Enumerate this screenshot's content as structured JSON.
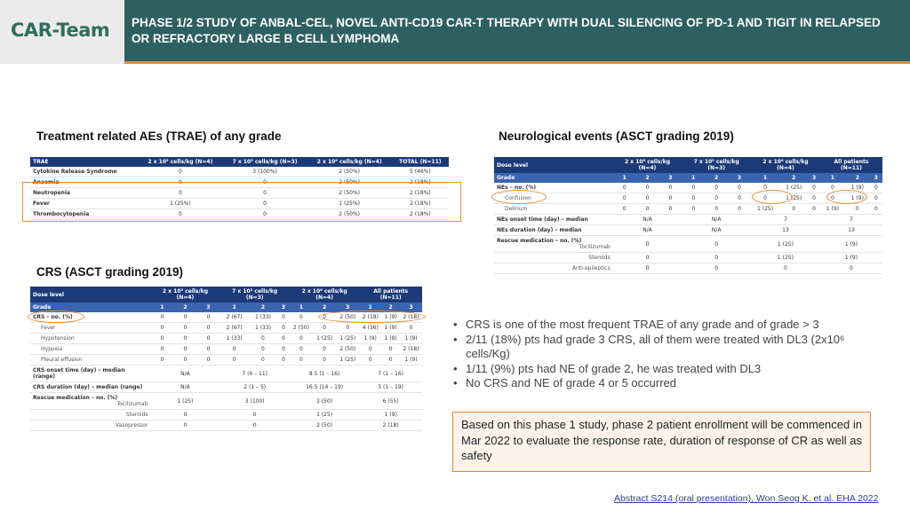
{
  "header": {
    "logo": "CAR-Team",
    "title": "PHASE 1/2 STUDY OF ANBAL-CEL, NOVEL ANTI-CD19 CAR-T THERAPY WITH DUAL SILENCING OF PD-1 AND TIGIT IN RELAPSED OR REFRACTORY LARGE B CELL LYMPHOMA"
  },
  "trae": {
    "title": "Treatment related AEs (TRAE) of any grade",
    "headers": [
      "TRAE",
      "2 x 10⁵ cells/kg (N=4)",
      "7 x 10⁵ cells/kg (N=3)",
      "2 x 10⁶ cells/kg (N=4)",
      "TOTAL (N=11)"
    ],
    "rows": [
      [
        "Cytokine Release Syndrome",
        "0",
        "3 (100%)",
        "2 (50%)",
        "5 (46%)"
      ],
      [
        "Anaemia",
        "0",
        "0",
        "2 (50%)",
        "2 (18%)"
      ],
      [
        "Neutropenia",
        "0",
        "0",
        "2 (50%)",
        "2 (18%)"
      ],
      [
        "Fever",
        "1 (25%)",
        "0",
        "1 (25%)",
        "2 (18%)"
      ],
      [
        "Thrombocytopenia",
        "0",
        "0",
        "2 (50%)",
        "2 (18%)"
      ]
    ]
  },
  "crs": {
    "title": "CRS (ASCT grading 2019)",
    "headers": [
      "Dose level",
      "2 x 10⁵ cells/kg (N=4)",
      "7 x 10⁵ cells/kg (N=3)",
      "2 x 10⁶ cells/kg (N=4)",
      "All patients (N=11)"
    ],
    "grade_label": "Grade",
    "grades": [
      "1",
      "2",
      "3",
      "1",
      "2",
      "3",
      "1",
      "2",
      "3",
      "1",
      "2",
      "3"
    ],
    "rows": [
      [
        "CRS – no. (%)",
        "0",
        "0",
        "0",
        "2 (67)",
        "1 (33)",
        "0",
        "0",
        "0",
        "2 (50)",
        "2 (18)",
        "1 (9)",
        "2 (18)"
      ],
      [
        "Fever",
        "0",
        "0",
        "0",
        "2 (67)",
        "1 (33)",
        "0",
        "2 (50)",
        "0",
        "0",
        "4 (36)",
        "1 (9)",
        "0"
      ],
      [
        "Hypotension",
        "0",
        "0",
        "0",
        "1 (33)",
        "0",
        "0",
        "0",
        "1 (25)",
        "1 (25)",
        "1 (9)",
        "1 (9)",
        "1 (9)"
      ],
      [
        "Hypoxia",
        "0",
        "0",
        "0",
        "0",
        "0",
        "0",
        "0",
        "0",
        "2 (50)",
        "0",
        "0",
        "2 (18)"
      ],
      [
        "Pleural effusion",
        "0",
        "0",
        "0",
        "0",
        "0",
        "0",
        "0",
        "0",
        "1 (25)",
        "0",
        "0",
        "1 (9)"
      ]
    ],
    "onset_label": "CRS onset time (day) – median (range)",
    "onset": [
      "N/A",
      "7 (6 – 11)",
      "8.5 (1 – 16)",
      "7 (1 – 16)"
    ],
    "duration_label": "CRS duration (day) – median (range)",
    "duration": [
      "N/A",
      "2 (1 – 5)",
      "16.5 (14 – 19)",
      "5 (1 – 19)"
    ],
    "rescue_label": "Rescue medication – no. (%)",
    "rescue": [
      [
        "Tocilizumab",
        "1 (25)",
        "3 (100)",
        "2 (50)",
        "6 (55)"
      ],
      [
        "Steroids",
        "0",
        "0",
        "1 (25)",
        "1 (9)"
      ],
      [
        "Vasopressor",
        "0",
        "0",
        "2 (50)",
        "2 (18)"
      ]
    ]
  },
  "neuro": {
    "title": "Neurological events (ASCT grading 2019)",
    "headers": [
      "Dose level",
      "2 x 10⁵ cells/kg (N=4)",
      "7 x 10⁵ cells/kg (N=3)",
      "2 x 10⁶ cells/kg (N=4)",
      "All patients (N=11)"
    ],
    "grade_label": "Grade",
    "grades": [
      "1",
      "2",
      "3",
      "1",
      "2",
      "3",
      "1",
      "2",
      "3",
      "1",
      "2",
      "3"
    ],
    "rows": [
      [
        "NEs – no. (%)",
        "0",
        "0",
        "0",
        "0",
        "0",
        "0",
        "0",
        "1 (25)",
        "0",
        "0",
        "1 (9)",
        "0"
      ],
      [
        "Confusion",
        "0",
        "0",
        "0",
        "0",
        "0",
        "0",
        "0",
        "1 (25)",
        "0",
        "0",
        "1 (9)",
        "0"
      ],
      [
        "Delirium",
        "0",
        "0",
        "0",
        "0",
        "0",
        "0",
        "1 (25)",
        "0",
        "0",
        "1 (9)",
        "0",
        "0"
      ]
    ],
    "onset_label": "NEs onset time (day) – median",
    "onset": [
      "N/A",
      "N/A",
      "7",
      "7"
    ],
    "duration_label": "NEs duration (day) – median",
    "duration": [
      "N/A",
      "N/A",
      "13",
      "13"
    ],
    "rescue_label": "Rescue medication – no. (%)",
    "rescue": [
      [
        "Tocilizumab",
        "0",
        "0",
        "1 (25)",
        "1 (9)"
      ],
      [
        "Steroids",
        "0",
        "0",
        "1 (25)",
        "1 (9)"
      ],
      [
        "Anti-epileptics",
        "0",
        "0",
        "0",
        "0"
      ]
    ]
  },
  "bullets": [
    "CRS is one of the most frequent TRAE of any grade and of grade > 3",
    "2/11 (18%) pts had grade 3 CRS, all of them were treated with DL3 (2x10⁶ cells/Kg)",
    "1/11 (9%) pts had NE of grade 2, he was treated with DL3",
    "No CRS and NE of grade 4 or 5 occurred"
  ],
  "note": "Based on this phase 1 study, phase 2 patient enrollment will be commenced in Mar 2022 to evaluate the response rate, duration of response of CR as well as safety",
  "citation": "Abstract S214 (oral presentation), Won Seog K. et al. EHA 2022",
  "colors": {
    "header_bg": "#2e5f61",
    "accent": "#e58a2c",
    "table_header": "#1d3a78"
  }
}
